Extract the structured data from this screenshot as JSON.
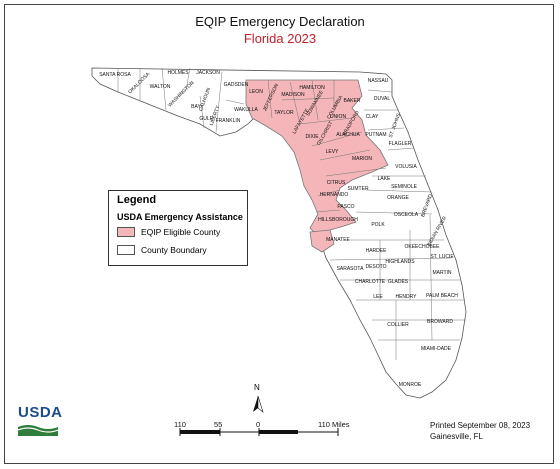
{
  "title": "EQIP Emergency Declaration",
  "subtitle": "Florida 2023",
  "colors": {
    "eligible": "#f4b6b9",
    "boundary": "#ffffff",
    "subtitle": "#c0202a"
  },
  "legend": {
    "heading": "Legend",
    "subheading": "USDA Emergency Assistance",
    "items": [
      "EQIP Eligible County",
      "County Boundary"
    ]
  },
  "counties": [
    "SANTA ROSA",
    "OKALOOSA",
    "HOLMES",
    "JACKSON",
    "WALTON",
    "WASHINGTON",
    "BAY",
    "CALHOUN",
    "GULF",
    "LIBERTY",
    "FRANKLIN",
    "GADSDEN",
    "LEON",
    "WAKULLA",
    "JEFFERSON",
    "MADISON",
    "TAYLOR",
    "HAMILTON",
    "SUWANNEE",
    "LAFAYETTE",
    "COLUMBIA",
    "BAKER",
    "NASSAU",
    "DUVAL",
    "UNION",
    "BRADFORD",
    "CLAY",
    "ST. JOHNS",
    "GILCHRIST",
    "ALACHUA",
    "PUTNAM",
    "DIXIE",
    "LEVY",
    "MARION",
    "FLAGLER",
    "VOLUSIA",
    "CITRUS",
    "LAKE",
    "SEMINOLE",
    "HERNANDO",
    "SUMTER",
    "PASCO",
    "ORANGE",
    "HILLSBOROUGH",
    "POLK",
    "OSCEOLA",
    "BREVARD",
    "MANATEE",
    "HARDEE",
    "INDIAN RIVER",
    "SARASOTA",
    "DESOTO",
    "HIGHLANDS",
    "OKEECHOBEE",
    "ST. LUCIE",
    "CHARLOTTE",
    "GLADES",
    "MARTIN",
    "LEE",
    "HENDRY",
    "PALM BEACH",
    "COLLIER",
    "BROWARD",
    "MIAMI-DADE",
    "MONROE"
  ],
  "north_label": "N",
  "scale": {
    "ticks": [
      "110",
      "55",
      "0",
      "110 Miles"
    ]
  },
  "logo_text": "USDA",
  "printed": {
    "line1": "Printed September 08, 2023",
    "line2": "Gainesville, FL"
  }
}
